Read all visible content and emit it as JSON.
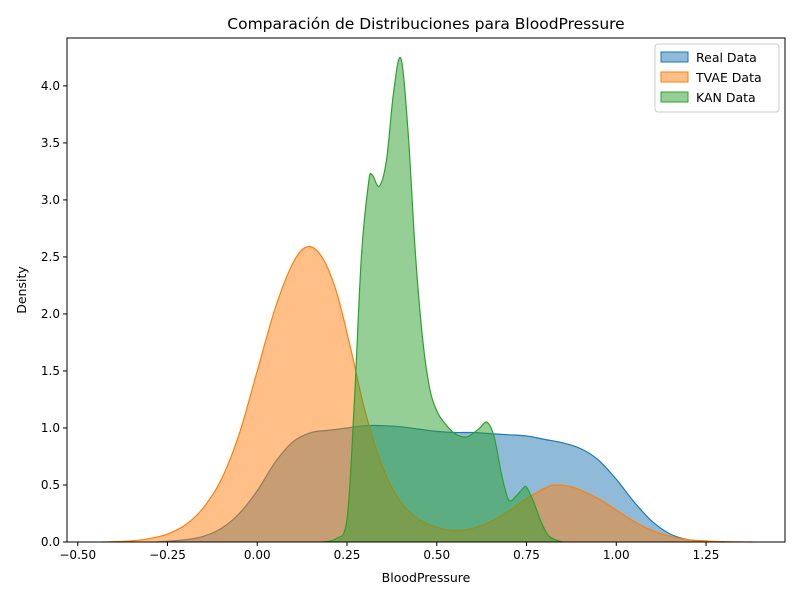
{
  "chart_data": {
    "type": "area",
    "title": "Comparación de Distribuciones para BloodPressure",
    "xlabel": "BloodPressure",
    "ylabel": "Density",
    "xlim": [
      -0.53,
      1.47
    ],
    "ylim": [
      0,
      4.42
    ],
    "xticks": [
      -0.5,
      -0.25,
      0.0,
      0.25,
      0.5,
      0.75,
      1.0,
      1.25
    ],
    "xtick_labels": [
      "−0.50",
      "−0.25",
      "0.00",
      "0.25",
      "0.50",
      "0.75",
      "1.00",
      "1.25"
    ],
    "yticks": [
      0.0,
      0.5,
      1.0,
      1.5,
      2.0,
      2.5,
      3.0,
      3.5,
      4.0
    ],
    "ytick_labels": [
      "0.0",
      "0.5",
      "1.0",
      "1.5",
      "2.0",
      "2.5",
      "3.0",
      "3.5",
      "4.0"
    ],
    "grid": false,
    "legend_position": "top-right",
    "series": [
      {
        "name": "Real Data",
        "color": "#1f77b4",
        "x": [
          -0.28,
          -0.2,
          -0.15,
          -0.1,
          -0.05,
          0.0,
          0.05,
          0.1,
          0.15,
          0.2,
          0.25,
          0.3,
          0.35,
          0.4,
          0.45,
          0.5,
          0.55,
          0.6,
          0.65,
          0.7,
          0.75,
          0.8,
          0.85,
          0.9,
          0.95,
          1.0,
          1.05,
          1.1,
          1.15,
          1.2,
          1.25,
          1.3
        ],
        "y": [
          0.0,
          0.02,
          0.05,
          0.12,
          0.25,
          0.45,
          0.7,
          0.88,
          0.96,
          0.98,
          1.0,
          1.02,
          1.02,
          1.01,
          0.99,
          0.97,
          0.96,
          0.96,
          0.95,
          0.94,
          0.93,
          0.9,
          0.87,
          0.82,
          0.72,
          0.55,
          0.35,
          0.18,
          0.07,
          0.02,
          0.005,
          0.0
        ]
      },
      {
        "name": "TVAE Data",
        "color": "#ff7f0e",
        "x": [
          -0.43,
          -0.35,
          -0.3,
          -0.25,
          -0.2,
          -0.15,
          -0.1,
          -0.05,
          0.0,
          0.05,
          0.1,
          0.14,
          0.18,
          0.22,
          0.26,
          0.3,
          0.35,
          0.4,
          0.45,
          0.5,
          0.55,
          0.6,
          0.65,
          0.7,
          0.75,
          0.8,
          0.83,
          0.88,
          0.95,
          1.0,
          1.05,
          1.1,
          1.15,
          1.2,
          1.25,
          1.3,
          1.38
        ],
        "y": [
          0.0,
          0.01,
          0.03,
          0.07,
          0.15,
          0.3,
          0.55,
          0.95,
          1.5,
          2.05,
          2.45,
          2.59,
          2.5,
          2.2,
          1.7,
          1.15,
          0.65,
          0.35,
          0.2,
          0.13,
          0.1,
          0.12,
          0.18,
          0.27,
          0.38,
          0.47,
          0.5,
          0.48,
          0.38,
          0.28,
          0.18,
          0.1,
          0.05,
          0.02,
          0.01,
          0.003,
          0.0
        ]
      },
      {
        "name": "KAN Data",
        "color": "#2ca02c",
        "x": [
          0.18,
          0.22,
          0.25,
          0.27,
          0.29,
          0.31,
          0.32,
          0.34,
          0.36,
          0.38,
          0.4,
          0.42,
          0.44,
          0.46,
          0.48,
          0.5,
          0.52,
          0.55,
          0.58,
          0.6,
          0.62,
          0.64,
          0.66,
          0.68,
          0.7,
          0.72,
          0.74,
          0.75,
          0.77,
          0.79,
          0.81,
          0.83,
          0.85
        ],
        "y": [
          0.0,
          0.03,
          0.2,
          1.2,
          2.5,
          3.15,
          3.22,
          3.12,
          3.35,
          3.95,
          4.24,
          3.6,
          2.55,
          1.8,
          1.35,
          1.15,
          1.05,
          0.95,
          0.92,
          0.95,
          1.0,
          1.05,
          0.92,
          0.6,
          0.37,
          0.4,
          0.47,
          0.48,
          0.35,
          0.18,
          0.06,
          0.02,
          0.0
        ]
      }
    ]
  }
}
